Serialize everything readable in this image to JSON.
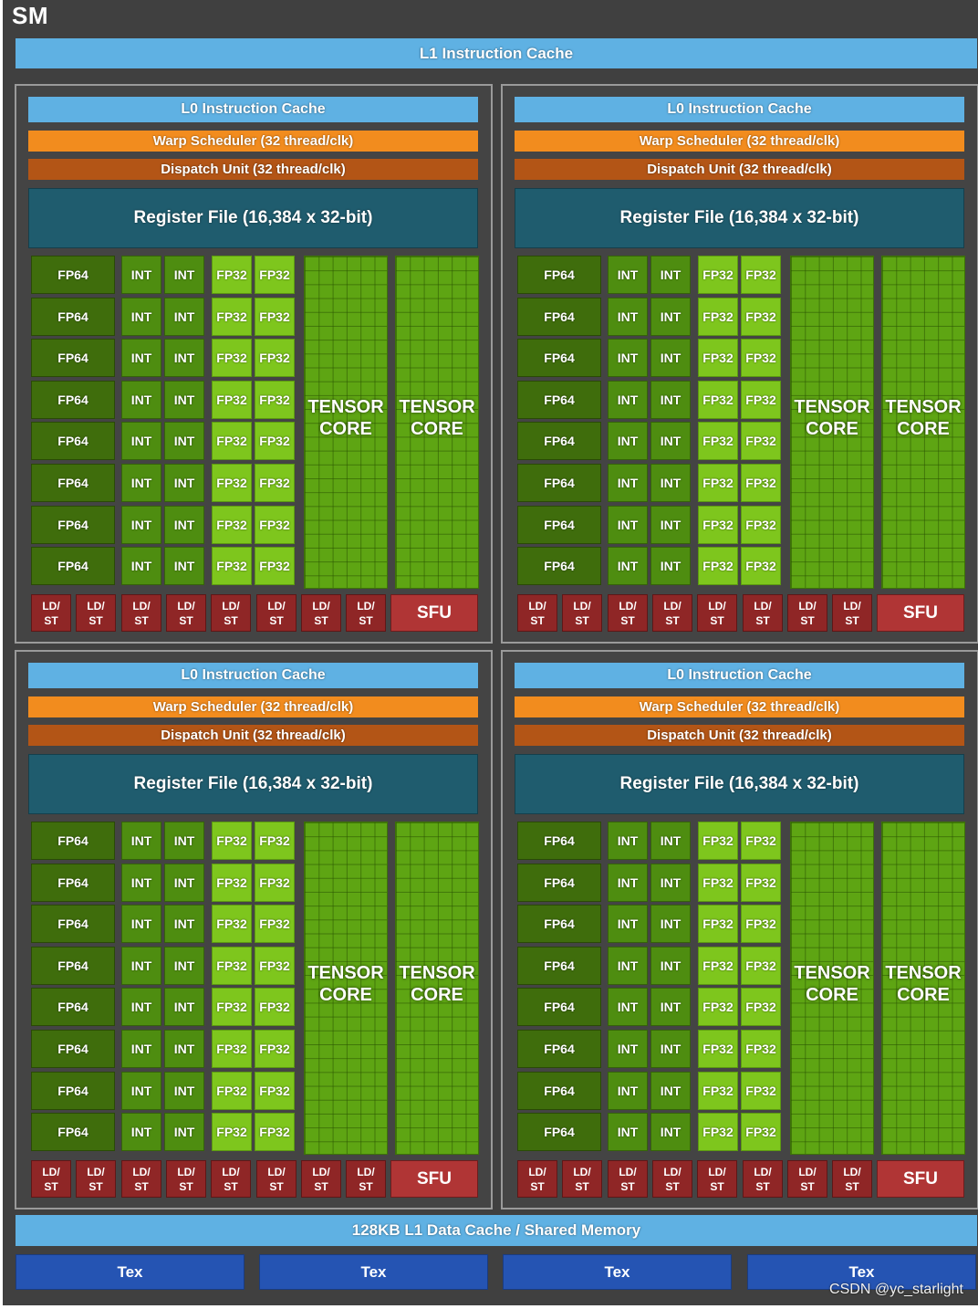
{
  "sm_title": "SM",
  "l1_instruction_cache": "L1 Instruction Cache",
  "l1_data_cache": "128KB L1 Data Cache / Shared Memory",
  "partition": {
    "l0_instruction_cache": "L0 Instruction Cache",
    "warp_scheduler": "Warp Scheduler (32 thread/clk)",
    "dispatch_unit": "Dispatch Unit (32 thread/clk)",
    "register_file": "Register File (16,384 x 32-bit)",
    "fp64_label": "FP64",
    "int_label": "INT",
    "fp32_label": "FP32",
    "tensor_core_line1": "TENSOR",
    "tensor_core_line2": "CORE",
    "ldst_line1": "LD/",
    "ldst_line2": "ST",
    "sfu_label": "SFU",
    "unit_rows": 8,
    "ldst_count": 8
  },
  "partitions": [
    {
      "id": "top-left"
    },
    {
      "id": "top-right"
    },
    {
      "id": "bottom-left"
    },
    {
      "id": "bottom-right"
    }
  ],
  "tex_units": [
    "Tex",
    "Tex",
    "Tex",
    "Tex"
  ],
  "watermark": "CSDN @yc_starlight",
  "colors": {
    "sm_background": "#404040",
    "cache": "#5fb1e3",
    "warp_scheduler": "#f28c1e",
    "dispatch_unit": "#b35516",
    "register_file": "#1f5c6e",
    "fp64": "#3f6d0c",
    "int": "#4e8d10",
    "fp32": "#7ec61d",
    "tensor_core": "#5ea513",
    "ldst": "#8f2626",
    "sfu": "#b03535",
    "tex": "#2554b3"
  }
}
